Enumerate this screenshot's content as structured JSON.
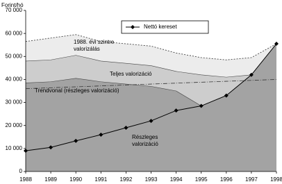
{
  "chart_data": {
    "type": "line",
    "y_axis_label": "Forint/hó",
    "x": [
      1988,
      1989,
      1990,
      1991,
      1992,
      1993,
      1994,
      1995,
      1996,
      1997,
      1998
    ],
    "xlim": [
      1988,
      1998
    ],
    "xticks": [
      1988,
      1989,
      1990,
      1991,
      1992,
      1993,
      1994,
      1995,
      1996,
      1997,
      1998
    ],
    "ylim": [
      0,
      70000
    ],
    "yticks": [
      {
        "value": 0,
        "label": "0"
      },
      {
        "value": 10000,
        "label": "10 000"
      },
      {
        "value": 20000,
        "label": "20 000"
      },
      {
        "value": 30000,
        "label": "30 000"
      },
      {
        "value": 40000,
        "label": "40 000"
      },
      {
        "value": 50000,
        "label": "50 000"
      },
      {
        "value": 60000,
        "label": "60 000"
      },
      {
        "value": 70000,
        "label": "70 000"
      }
    ],
    "legend": "top-center",
    "series": [
      {
        "name": "1988. évi szintre valorizálás",
        "style": "area",
        "color": "#ececec",
        "values": [
          56500,
          58000,
          59500,
          56500,
          55500,
          54500,
          51500,
          49500,
          48500,
          49500,
          55500
        ]
      },
      {
        "name": "Teljes valorizáció",
        "style": "area",
        "color": "#cdcdcd",
        "values": [
          48000,
          48500,
          50500,
          48000,
          47000,
          46000,
          43500,
          42000,
          41000,
          42000,
          55500
        ]
      },
      {
        "name": "Részleges valorizáció",
        "style": "area",
        "color": "#a3a3a3",
        "values": [
          38500,
          39000,
          40500,
          39000,
          38000,
          37000,
          35000,
          28500,
          33000,
          42000,
          55500
        ]
      },
      {
        "name": "Trendvonal (részleges valorizáció)",
        "style": "trend",
        "color": "#333333",
        "values": [
          36000,
          36400,
          36800,
          37200,
          37600,
          38000,
          38400,
          38800,
          39200,
          39600,
          40000
        ]
      },
      {
        "name": "Nettó kereset",
        "style": "line",
        "color": "#000000",
        "values": [
          9000,
          10500,
          13300,
          16000,
          19000,
          22000,
          26500,
          28500,
          33000,
          42000,
          55500
        ]
      }
    ]
  }
}
